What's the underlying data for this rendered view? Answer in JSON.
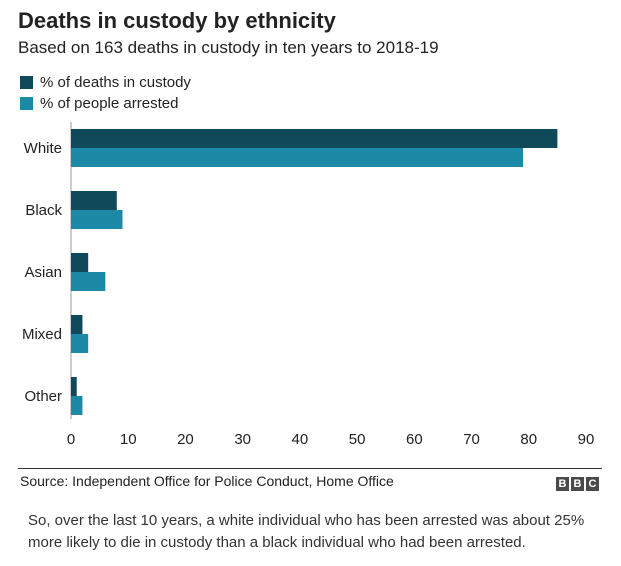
{
  "header": {
    "title": "Deaths in custody by ethnicity",
    "subtitle": "Based on 163 deaths in custody in ten years to 2018-19"
  },
  "legend": [
    {
      "label": "% of deaths in custody",
      "color": "#10495a"
    },
    {
      "label": "% of people arrested",
      "color": "#1c8aa6"
    }
  ],
  "chart_data": {
    "type": "bar",
    "orientation": "horizontal",
    "title": "Deaths in custody by ethnicity",
    "categories": [
      "White",
      "Black",
      "Asian",
      "Mixed",
      "Other"
    ],
    "series": [
      {
        "name": "% of deaths in custody",
        "color": "#10495a",
        "values": [
          85,
          8,
          3,
          2,
          1
        ]
      },
      {
        "name": "% of people arrested",
        "color": "#1c8aa6",
        "values": [
          79,
          9,
          6,
          3,
          2
        ]
      }
    ],
    "xticks": [
      0,
      10,
      20,
      30,
      40,
      50,
      60,
      70,
      80,
      90
    ],
    "xlim": [
      0,
      90
    ],
    "xlabel": "",
    "ylabel": "",
    "grid": false,
    "legend_position": "top-left"
  },
  "footer": {
    "source": "Source: Independent Office for Police Conduct, Home Office",
    "logo_letters": [
      "B",
      "B",
      "C"
    ]
  },
  "caption": "So, over the last 10 years, a white individual who has been arrested was about 25% more likely to die in custody than a black individual who had been arrested."
}
